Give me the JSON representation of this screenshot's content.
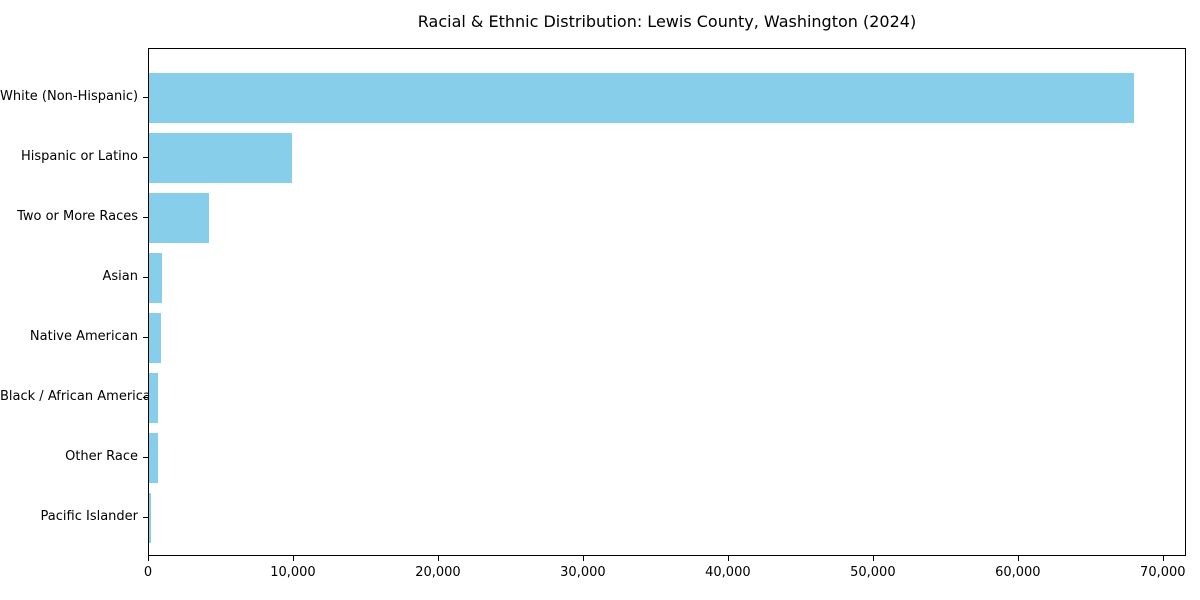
{
  "title": "Racial & Ethnic Distribution: Lewis County, Washington (2024)",
  "colors": {
    "bar": "#87CEEB",
    "spine": "#000000",
    "text": "#000000",
    "background": "#ffffff"
  },
  "chart_data": {
    "type": "bar",
    "orientation": "horizontal",
    "title": "Racial & Ethnic Distribution: Lewis County, Washington (2024)",
    "categories": [
      "White (Non-Hispanic)",
      "Hispanic or Latino",
      "Two or More Races",
      "Asian",
      "Native American",
      "Black / African American",
      "Other Race",
      "Pacific Islander"
    ],
    "values": [
      68100,
      9900,
      4150,
      900,
      830,
      620,
      600,
      150
    ],
    "xlabel": "",
    "ylabel": "",
    "xlim": [
      0,
      71600
    ],
    "xticks": [
      0,
      10000,
      20000,
      30000,
      40000,
      50000,
      60000,
      70000
    ],
    "xtick_labels": [
      "0",
      "10,000",
      "20,000",
      "30,000",
      "40,000",
      "50,000",
      "60,000",
      "70,000"
    ],
    "grid": false,
    "legend": null,
    "bar_color": "#87CEEB"
  }
}
